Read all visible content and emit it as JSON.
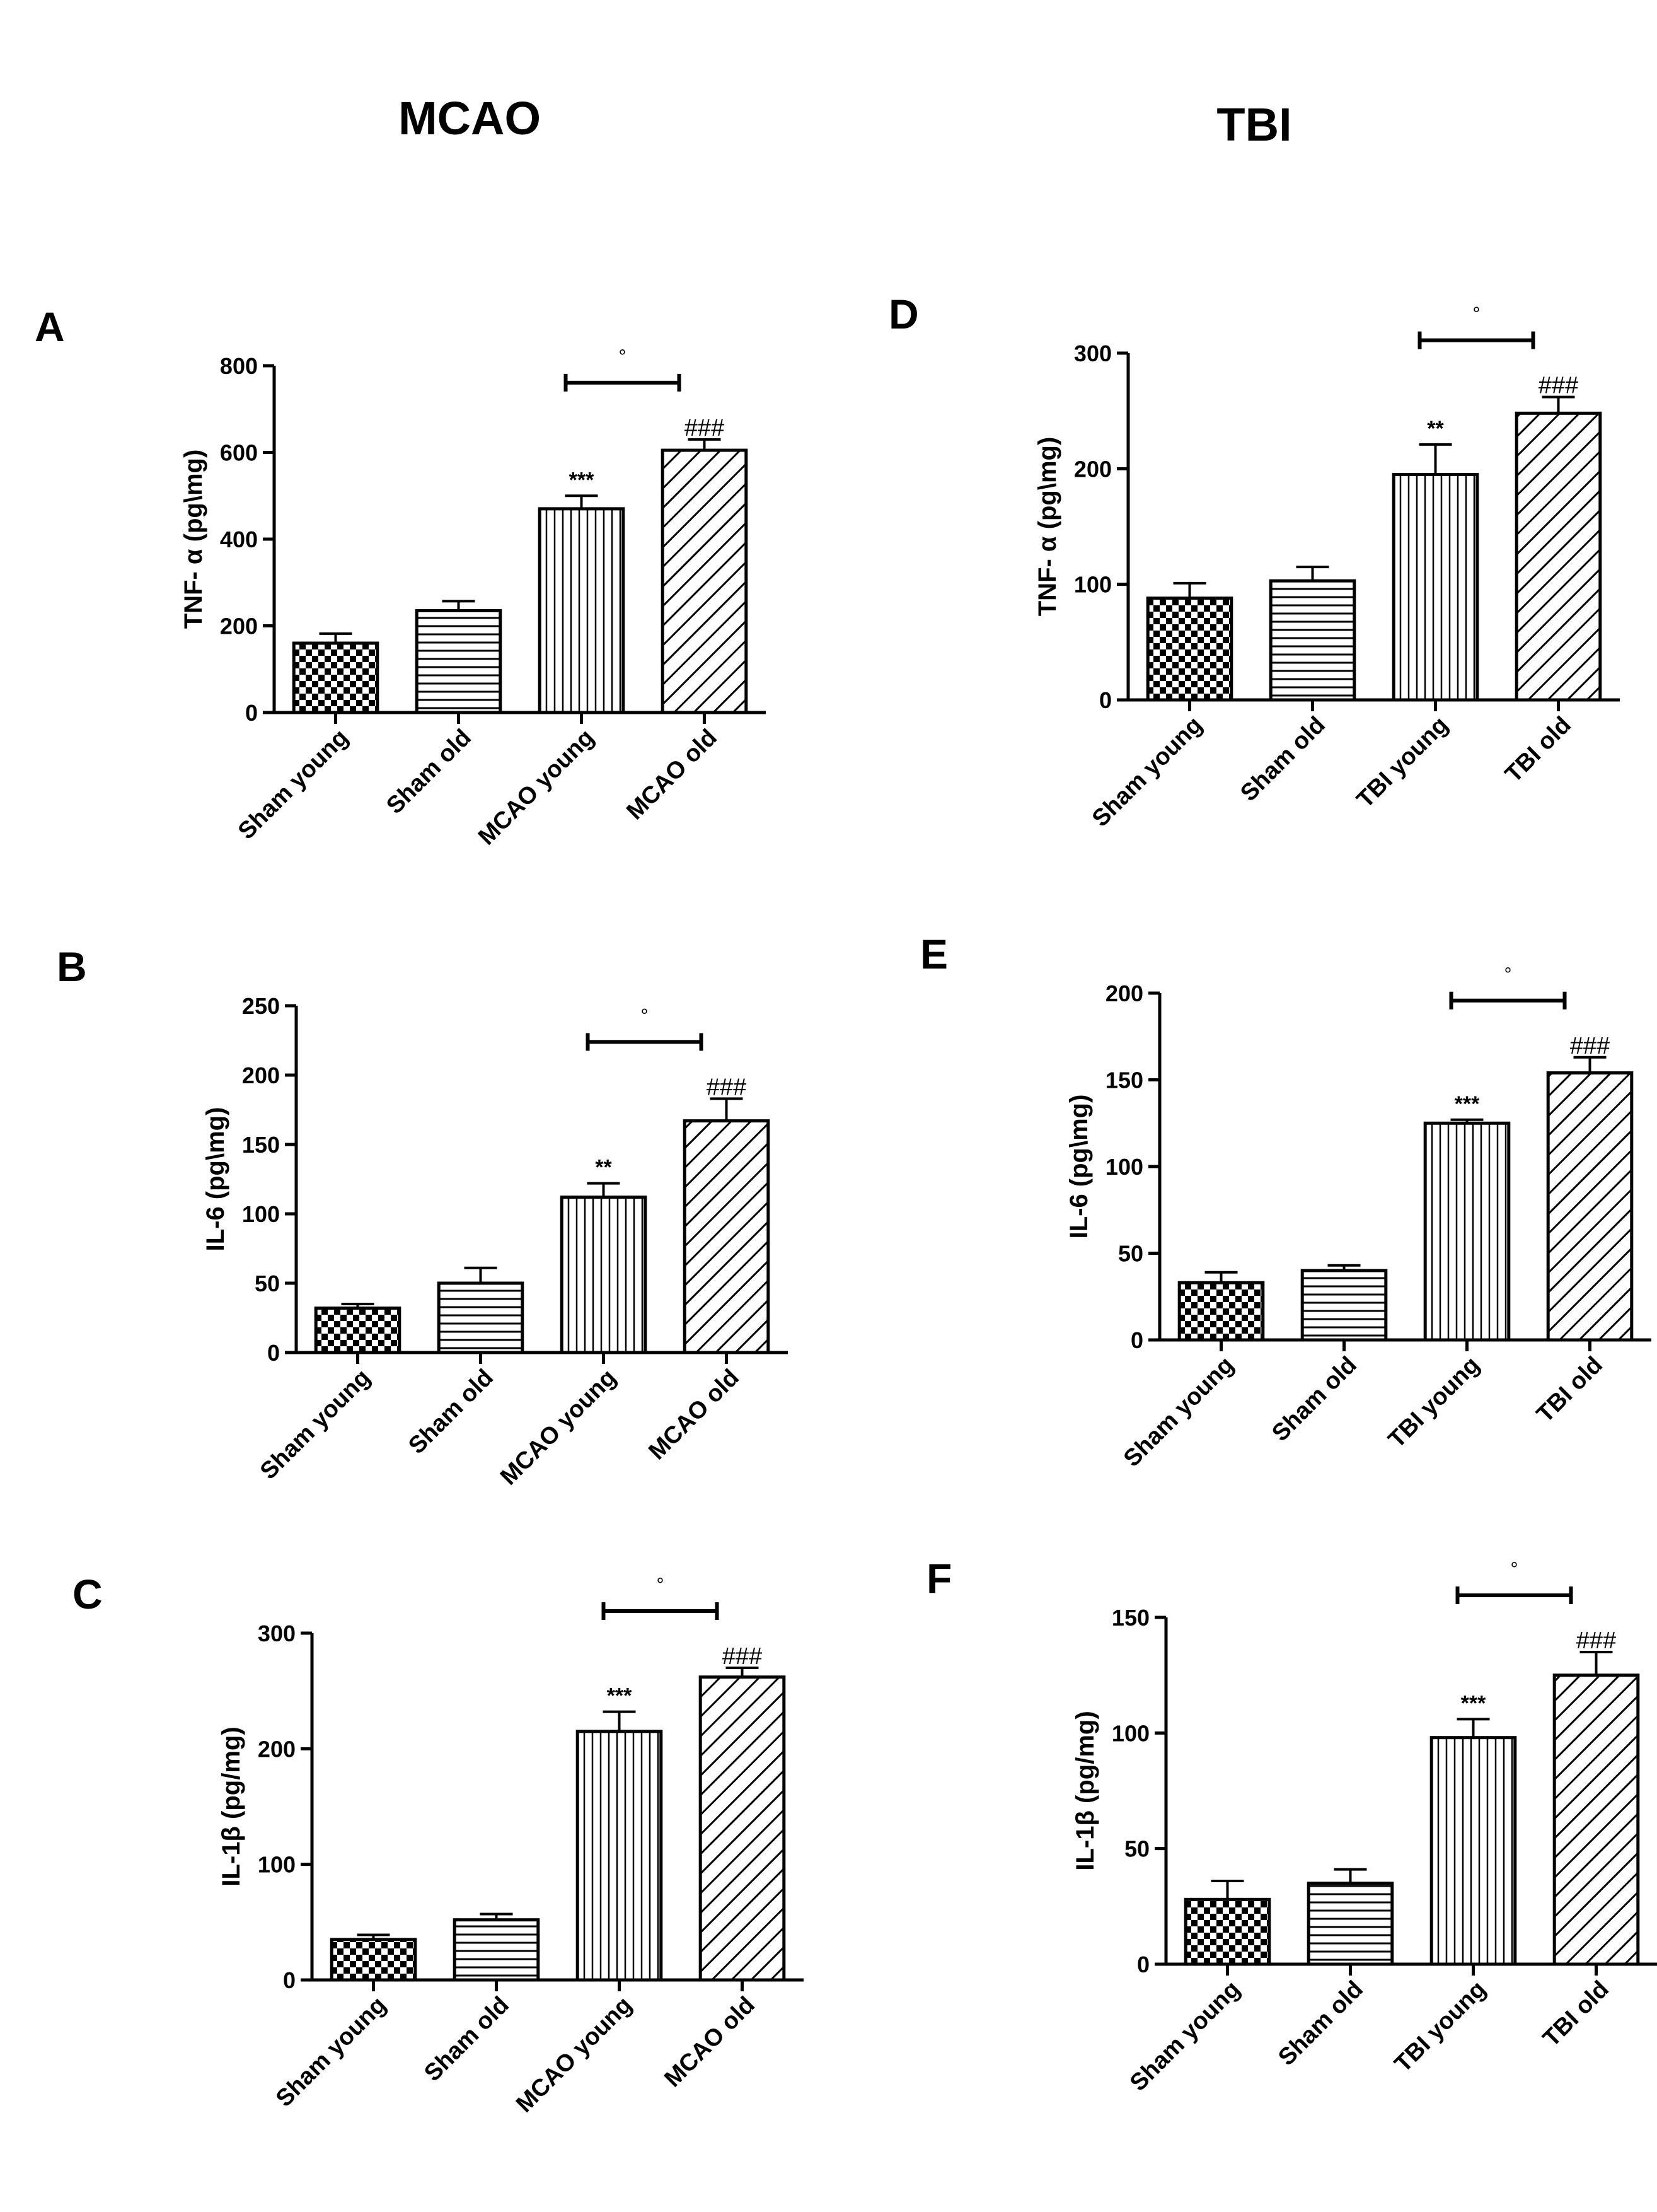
{
  "columns": {
    "left": "MCAO",
    "right": "TBI"
  },
  "chart_data": [
    {
      "panel": "A",
      "type": "bar",
      "categories": [
        "Sham young",
        "Sham old",
        "MCAO young",
        "MCAO old"
      ],
      "values": [
        160,
        235,
        470,
        605
      ],
      "errors": [
        22,
        22,
        30,
        25
      ],
      "ylabel": "TNF- α (pg\\mg)",
      "ylim": [
        0,
        800
      ],
      "yticks": [
        "0",
        "200",
        "400",
        "600",
        "800"
      ],
      "annotations": [
        "",
        "",
        "***",
        "###"
      ],
      "bracket": "°"
    },
    {
      "panel": "B",
      "type": "bar",
      "categories": [
        "Sham young",
        "Sham old",
        "MCAO young",
        "MCAO old"
      ],
      "values": [
        32,
        50,
        112,
        167
      ],
      "errors": [
        3,
        11,
        10,
        16
      ],
      "ylabel": "IL-6 (pg\\mg)",
      "ylim": [
        0,
        250
      ],
      "yticks": [
        "0",
        "50",
        "100",
        "150",
        "200",
        "250"
      ],
      "annotations": [
        "",
        "",
        "**",
        "###"
      ],
      "bracket": "°"
    },
    {
      "panel": "C",
      "type": "bar",
      "categories": [
        "Sham young",
        "Sham old",
        "MCAO young",
        "MCAO old"
      ],
      "values": [
        35,
        52,
        215,
        262
      ],
      "errors": [
        4,
        5,
        17,
        8
      ],
      "ylabel": "IL-1β (pg/mg)",
      "ylim": [
        0,
        300
      ],
      "yticks": [
        "0",
        "100",
        "200",
        "300"
      ],
      "annotations": [
        "",
        "",
        "***",
        "###"
      ],
      "bracket": "°"
    },
    {
      "panel": "D",
      "type": "bar",
      "categories": [
        "Sham young",
        "Sham old",
        "TBI young",
        "TBI old"
      ],
      "values": [
        88,
        103,
        195,
        248
      ],
      "errors": [
        13,
        12,
        26,
        14
      ],
      "ylabel": "TNF- α (pg\\mg)",
      "ylim": [
        0,
        300
      ],
      "yticks": [
        "0",
        "100",
        "200",
        "300"
      ],
      "annotations": [
        "",
        "",
        "**",
        "###"
      ],
      "bracket": "°"
    },
    {
      "panel": "E",
      "type": "bar",
      "categories": [
        "Sham young",
        "Sham old",
        "TBI young",
        "TBI old"
      ],
      "values": [
        33,
        40,
        125,
        154
      ],
      "errors": [
        6,
        3,
        2,
        9
      ],
      "ylabel": "IL-6 (pg\\mg)",
      "ylim": [
        0,
        200
      ],
      "yticks": [
        "0",
        "50",
        "100",
        "150",
        "200"
      ],
      "annotations": [
        "",
        "",
        "***",
        "###"
      ],
      "bracket": "°"
    },
    {
      "panel": "F",
      "type": "bar",
      "categories": [
        "Sham young",
        "Sham old",
        "TBI young",
        "TBI old"
      ],
      "values": [
        28,
        35,
        98,
        125
      ],
      "errors": [
        8,
        6,
        8,
        10
      ],
      "ylabel": "IL-1β (pg/mg)",
      "ylim": [
        0,
        150
      ],
      "yticks": [
        "0",
        "50",
        "100",
        "150"
      ],
      "annotations": [
        "",
        "",
        "***",
        "###"
      ],
      "bracket": "°"
    }
  ]
}
